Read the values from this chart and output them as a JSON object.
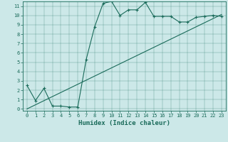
{
  "xlabel": "Humidex (Indice chaleur)",
  "ylabel": "",
  "bg_color": "#cce8e8",
  "line_color": "#1a6b5a",
  "xlim": [
    -0.5,
    23.5
  ],
  "ylim": [
    -0.2,
    11.5
  ],
  "xticks": [
    0,
    1,
    2,
    3,
    4,
    5,
    6,
    7,
    8,
    9,
    10,
    11,
    12,
    13,
    14,
    15,
    16,
    17,
    18,
    19,
    20,
    21,
    22,
    23
  ],
  "yticks": [
    0,
    1,
    2,
    3,
    4,
    5,
    6,
    7,
    8,
    9,
    10,
    11
  ],
  "line1_x": [
    0,
    1,
    2,
    3,
    4,
    5,
    6,
    7,
    8,
    9,
    10,
    11,
    12,
    13,
    14,
    15,
    16,
    17,
    18,
    19,
    20,
    21,
    22,
    23
  ],
  "line1_y": [
    2.5,
    0.9,
    2.2,
    0.3,
    0.3,
    0.2,
    0.2,
    5.3,
    8.8,
    11.3,
    11.5,
    10.0,
    10.6,
    10.6,
    11.4,
    9.9,
    9.9,
    9.9,
    9.3,
    9.3,
    9.8,
    9.9,
    10.0,
    9.9
  ],
  "line2_x": [
    0,
    23
  ],
  "line2_y": [
    0.0,
    10.1
  ],
  "fontsize_ticks": 5,
  "fontsize_xlabel": 6.5
}
